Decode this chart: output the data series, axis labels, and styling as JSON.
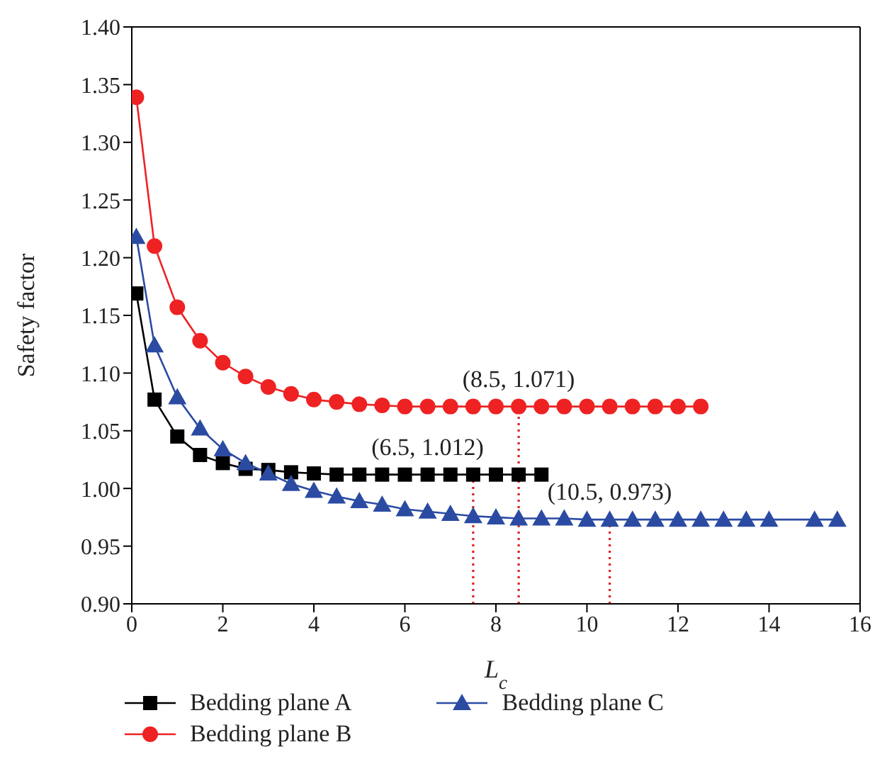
{
  "chart_data": {
    "type": "line",
    "xlabel": "L$_{c}$",
    "ylabel": "Safety factor",
    "xlim": [
      0,
      16
    ],
    "xticks": [
      0,
      2,
      4,
      6,
      8,
      10,
      12,
      14,
      16
    ],
    "ylim": [
      0.9,
      1.4
    ],
    "yticks": [
      {
        "value": 0.9,
        "label": "0.90"
      },
      {
        "value": 0.95,
        "label": "0.95"
      },
      {
        "value": 1.0,
        "label": "1.00"
      },
      {
        "value": 1.05,
        "label": "1.05"
      },
      {
        "value": 1.1,
        "label": "1.10"
      },
      {
        "value": 1.15,
        "label": "1.15"
      },
      {
        "value": 1.2,
        "label": "1.20"
      },
      {
        "value": 1.25,
        "label": "1.25"
      },
      {
        "value": 1.3,
        "label": "1.30"
      },
      {
        "value": 1.35,
        "label": "1.35"
      },
      {
        "value": 1.4,
        "label": "1.40"
      }
    ],
    "grid": false,
    "legend": "bottom",
    "line_style": "solid",
    "series": [
      {
        "name": "Bedding plane A",
        "color": "#000000",
        "marker": "square",
        "x": [
          0.1,
          0.5,
          1,
          1.5,
          2,
          2.5,
          3,
          3.5,
          4,
          4.5,
          5,
          5.5,
          6,
          6.5,
          7,
          7.5,
          8,
          8.5,
          9
        ],
        "values": [
          1.169,
          1.077,
          1.045,
          1.029,
          1.022,
          1.017,
          1.016,
          1.014,
          1.013,
          1.012,
          1.012,
          1.012,
          1.012,
          1.012,
          1.012,
          1.012,
          1.012,
          1.012,
          1.012
        ]
      },
      {
        "name": "Bedding plane B",
        "color": "#ee2222",
        "marker": "circle",
        "x": [
          0.1,
          0.5,
          1,
          1.5,
          2,
          2.5,
          3,
          3.5,
          4,
          4.5,
          5,
          5.5,
          6,
          6.5,
          7,
          7.5,
          8,
          8.5,
          9,
          9.5,
          10,
          10.5,
          11,
          11.5,
          12,
          12.5
        ],
        "values": [
          1.339,
          1.21,
          1.157,
          1.128,
          1.109,
          1.097,
          1.088,
          1.082,
          1.077,
          1.075,
          1.073,
          1.072,
          1.071,
          1.071,
          1.071,
          1.071,
          1.071,
          1.071,
          1.071,
          1.071,
          1.071,
          1.071,
          1.071,
          1.071,
          1.071,
          1.071
        ]
      },
      {
        "name": "Bedding plane C",
        "color": "#2b4ba3",
        "marker": "triangle",
        "x": [
          0.1,
          0.5,
          1,
          1.5,
          2,
          2.5,
          3,
          3.5,
          4,
          4.5,
          5,
          5.5,
          6,
          6.5,
          7,
          7.5,
          8,
          8.5,
          9,
          9.5,
          10,
          10.5,
          11,
          11.5,
          12,
          12.5,
          13,
          13.5,
          14,
          15,
          15.5
        ],
        "values": [
          1.218,
          1.124,
          1.079,
          1.052,
          1.034,
          1.022,
          1.013,
          1.004,
          0.998,
          0.993,
          0.989,
          0.986,
          0.982,
          0.98,
          0.978,
          0.976,
          0.975,
          0.974,
          0.974,
          0.974,
          0.973,
          0.973,
          0.973,
          0.973,
          0.973,
          0.973,
          0.973,
          0.973,
          0.973,
          0.973,
          0.973
        ]
      },
      {
        "color": "#e02020",
        "line_style": "dotted",
        "marker": "none",
        "x": [
          7.5,
          7.5
        ],
        "values": [
          0.9,
          1.012
        ]
      },
      {
        "color": "#e02020",
        "line_style": "dotted",
        "marker": "none",
        "x": [
          8.5,
          8.5
        ],
        "values": [
          0.9,
          1.071
        ]
      },
      {
        "color": "#e02020",
        "line_style": "dotted",
        "marker": "none",
        "x": [
          10.5,
          10.5
        ],
        "values": [
          0.9,
          0.973
        ]
      }
    ],
    "annotations": [
      {
        "text": "(8.5, 1.071)",
        "x": 8.5,
        "y": 1.071
      },
      {
        "text": "(6.5, 1.012)",
        "x": 6.5,
        "y": 1.012
      },
      {
        "text": "(10.5, 0.973)",
        "x": 10.5,
        "y": 0.973
      }
    ]
  }
}
